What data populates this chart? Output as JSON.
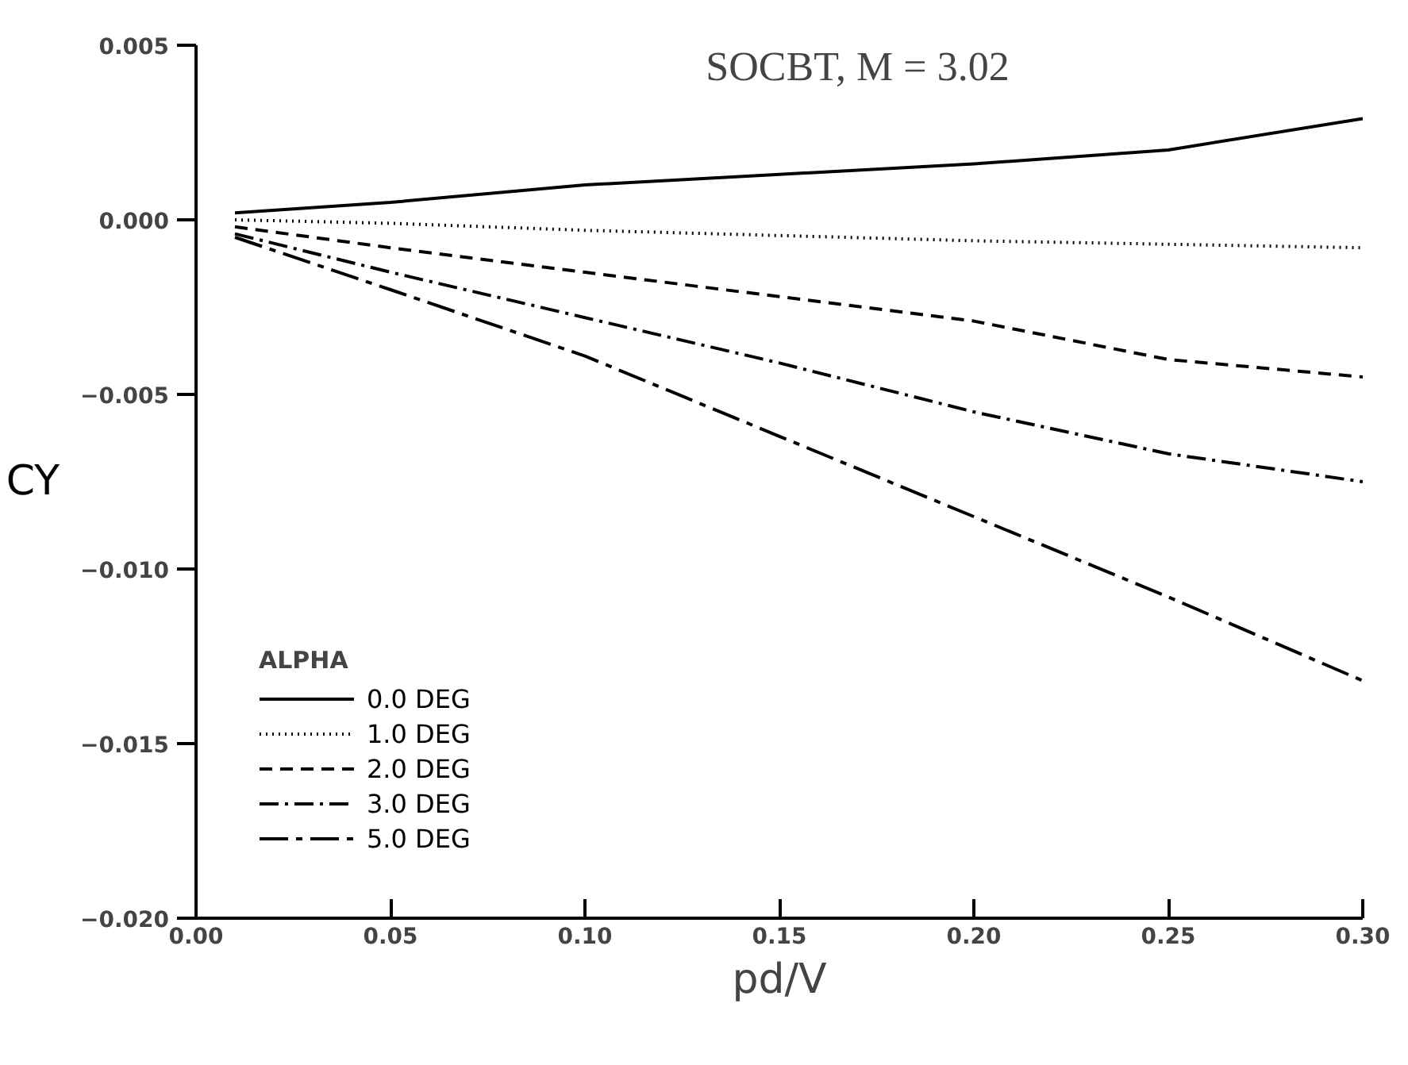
{
  "chart_data": {
    "type": "line",
    "title": "SOCBT,  M = 3.02",
    "xlabel": "pd/V",
    "ylabel": "CY",
    "legend_title": "ALPHA",
    "legend": "bottom left",
    "grid": false,
    "marker": "none",
    "x": [
      0.01,
      0.05,
      0.1,
      0.15,
      0.2,
      0.25,
      0.3
    ],
    "xlim": [
      0.0,
      0.3
    ],
    "xticks": [
      {
        "value": 0.0,
        "label": "0.00"
      },
      {
        "value": 0.05,
        "label": "0.05"
      },
      {
        "value": 0.1,
        "label": "0.10"
      },
      {
        "value": 0.15,
        "label": "0.15"
      },
      {
        "value": 0.2,
        "label": "0.20"
      },
      {
        "value": 0.25,
        "label": "0.25"
      },
      {
        "value": 0.3,
        "label": "0.30"
      }
    ],
    "ylim": [
      -0.02,
      0.005
    ],
    "yticks": [
      {
        "value": -0.02,
        "label": "−0.020"
      },
      {
        "value": -0.015,
        "label": "−0.015"
      },
      {
        "value": -0.01,
        "label": "−0.010"
      },
      {
        "value": -0.005,
        "label": "−0.005"
      },
      {
        "value": 0.0,
        "label": "0.000"
      },
      {
        "value": 0.005,
        "label": "0.005"
      }
    ],
    "series": [
      {
        "name": "0.0 DEG",
        "color": "#000000",
        "line_style": "solid",
        "values": [
          0.0002,
          0.0005,
          0.001,
          0.0013,
          0.0016,
          0.002,
          0.0029
        ]
      },
      {
        "name": "1.0 DEG",
        "color": "#000000",
        "line_style": "dotted",
        "values": [
          0.0,
          -0.0001,
          -0.0003,
          -0.00045,
          -0.0006,
          -0.0007,
          -0.0008
        ]
      },
      {
        "name": "2.0 DEG",
        "color": "#000000",
        "line_style": "dashed",
        "values": [
          -0.0002,
          -0.0008,
          -0.0015,
          -0.0022,
          -0.0029,
          -0.004,
          -0.0045
        ]
      },
      {
        "name": "3.0 DEG",
        "color": "#000000",
        "line_style": "dashdot",
        "values": [
          -0.0004,
          -0.0015,
          -0.0028,
          -0.0041,
          -0.0055,
          -0.0067,
          -0.0075
        ]
      },
      {
        "name": "5.0 DEG",
        "color": "#000000",
        "line_style": "longdashdot",
        "values": [
          -0.0005,
          -0.002,
          -0.0039,
          -0.0062,
          -0.0085,
          -0.0108,
          -0.0132
        ]
      }
    ]
  }
}
